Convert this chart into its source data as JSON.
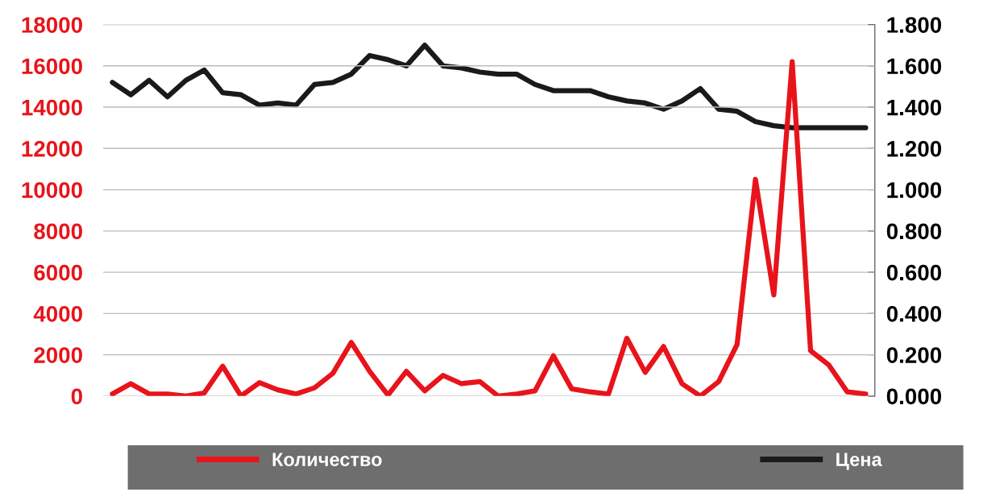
{
  "chart_data": {
    "type": "line",
    "categories": [
      null,
      null,
      null,
      null,
      null,
      null,
      null,
      null,
      null,
      null,
      null,
      null,
      null,
      null,
      null,
      null,
      null,
      null,
      null,
      null,
      null,
      null,
      null,
      null,
      null,
      null,
      null,
      null,
      null,
      null,
      null,
      null,
      null,
      null,
      null,
      null,
      null,
      null,
      null,
      null,
      null,
      null
    ],
    "series": [
      {
        "name": "Количество",
        "color": "#e8141b",
        "values": [
          100,
          600,
          100,
          100,
          0,
          150,
          1450,
          0,
          650,
          300,
          100,
          400,
          1100,
          2600,
          1200,
          50,
          1200,
          250,
          1000,
          600,
          700,
          0,
          100,
          250,
          1950,
          350,
          200,
          100,
          2800,
          1150,
          2400,
          600,
          0,
          700,
          2500,
          10500,
          4900,
          16200,
          2200,
          1500,
          200,
          100
        ]
      },
      {
        "name": "Цена",
        "color": "#1a1a1a",
        "axis": "y2",
        "values": [
          1.52,
          1.46,
          1.53,
          1.45,
          1.53,
          1.58,
          1.47,
          1.46,
          1.41,
          1.42,
          1.41,
          1.51,
          1.52,
          1.56,
          1.65,
          1.63,
          1.6,
          1.7,
          1.6,
          1.59,
          1.57,
          1.56,
          1.56,
          1.51,
          1.48,
          1.48,
          1.48,
          1.45,
          1.43,
          1.42,
          1.39,
          1.43,
          1.49,
          1.39,
          1.38,
          1.33,
          1.31,
          1.3,
          1.3,
          1.3,
          1.3,
          1.3
        ]
      }
    ],
    "ylim": [
      0,
      18000
    ],
    "yticks": [
      0,
      2000,
      4000,
      6000,
      8000,
      10000,
      12000,
      14000,
      16000,
      18000
    ],
    "y2lim": [
      0,
      1.8
    ],
    "y2ticks": [
      {
        "value": 0,
        "label": "0.000"
      },
      {
        "value": 0.2,
        "label": "0.200"
      },
      {
        "value": 0.4,
        "label": "0.400"
      },
      {
        "value": 0.6,
        "label": "0.600"
      },
      {
        "value": 0.8,
        "label": "0.800"
      },
      {
        "value": 1.0,
        "label": "1.000"
      },
      {
        "value": 1.2,
        "label": "1.200"
      },
      {
        "value": 1.4,
        "label": "1.400"
      },
      {
        "value": 1.6,
        "label": "1.600"
      },
      {
        "value": 1.8,
        "label": "1.800"
      }
    ],
    "grid": "y",
    "legend": "bottom",
    "marker": "none",
    "line_style": "solid"
  }
}
